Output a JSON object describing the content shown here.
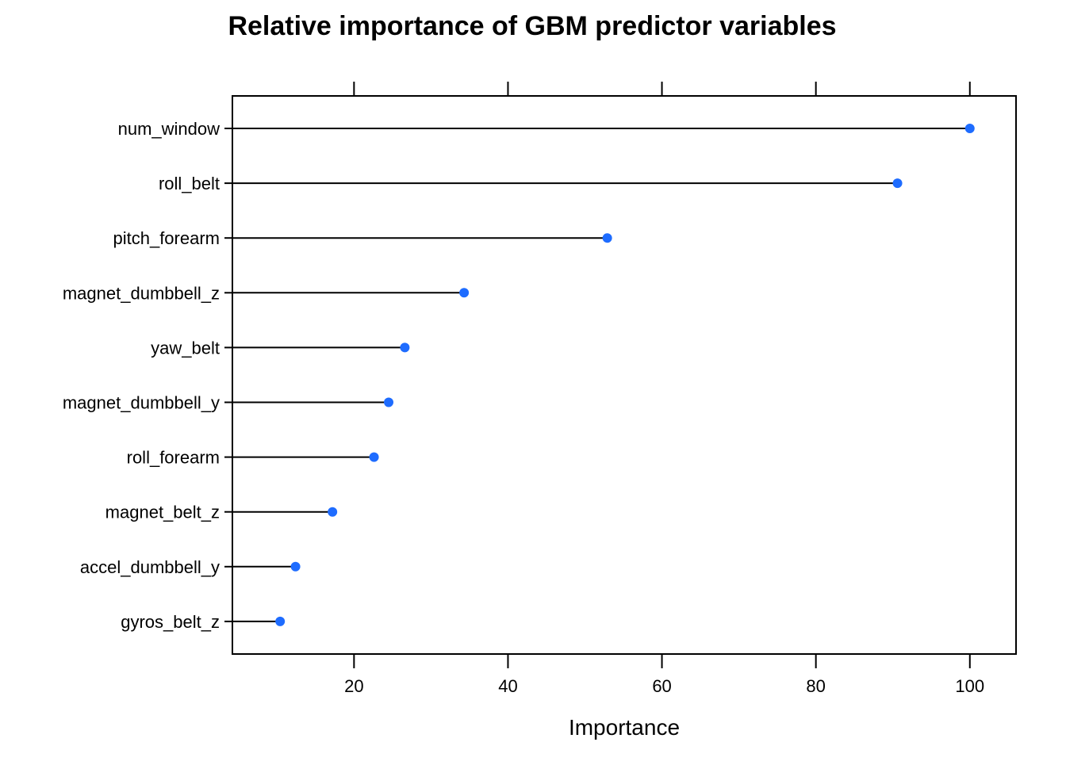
{
  "chart_data": {
    "type": "dot",
    "title": "Relative importance of GBM predictor variables",
    "xlabel": "Importance",
    "ylabel": "",
    "xlim": [
      4.2,
      106
    ],
    "xticks": [
      20,
      40,
      60,
      80,
      100
    ],
    "xtick_labels": [
      "20",
      "40",
      "60",
      "80",
      "100"
    ],
    "grid": false,
    "categories": [
      "num_window",
      "roll_belt",
      "pitch_forearm",
      "magnet_dumbbell_z",
      "yaw_belt",
      "magnet_dumbbell_y",
      "roll_forearm",
      "magnet_belt_z",
      "accel_dumbbell_y",
      "gyros_belt_z"
    ],
    "values": [
      100,
      90.6,
      52.9,
      34.3,
      26.6,
      24.5,
      22.6,
      17.2,
      12.4,
      10.4
    ],
    "point_color": "#1e6cff",
    "line_color": "#000000"
  }
}
